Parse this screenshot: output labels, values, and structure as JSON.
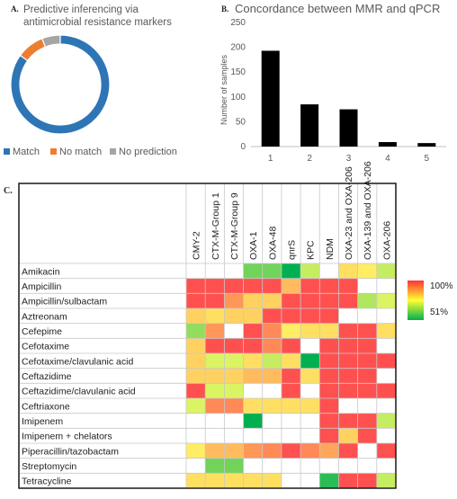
{
  "panel_a": {
    "letter": "A.",
    "title_line1": "Predictive inferencing via",
    "title_line2": "antimicrobial resistance markers",
    "legend": [
      {
        "label": "Match",
        "color": "#2e75b6"
      },
      {
        "label": "No match",
        "color": "#ed7d31"
      },
      {
        "label": "No prediction",
        "color": "#a5a5a5"
      }
    ]
  },
  "panel_b": {
    "letter": "B.",
    "title": "Concordance between MMR and qPCR",
    "ylabel": "Number of samples"
  },
  "panel_c": {
    "letter": "C.",
    "scale_high": "100%",
    "scale_low": "51%"
  },
  "chart_data": [
    {
      "type": "pie",
      "variant": "donut",
      "title": "Predictive inferencing via antimicrobial resistance markers",
      "labels": [
        "Match",
        "No match",
        "No prediction"
      ],
      "values": [
        85,
        9,
        6
      ],
      "colors": [
        "#2e75b6",
        "#ed7d31",
        "#a5a5a5"
      ],
      "legend_position": "bottom"
    },
    {
      "type": "bar",
      "title": "Concordance between MMR and qPCR",
      "categories": [
        "1",
        "2",
        "3",
        "4",
        "5"
      ],
      "values": [
        193,
        85,
        75,
        9,
        7
      ],
      "ylabel": "Number of samples",
      "ylim": [
        0,
        250
      ],
      "yticks": [
        0,
        50,
        100,
        150,
        200,
        250
      ],
      "color": "#000000"
    },
    {
      "type": "heatmap",
      "columns": [
        "CMY-2",
        "CTX-M-Group 1",
        "CTX-M-Group 9",
        "OXA-1",
        "OXA-48",
        "qnrS",
        "KPC",
        "NDM",
        "OXA-23 and OXA-206",
        "OXA-139 and OXA-206",
        "OXA-206"
      ],
      "rows": [
        "Amikacin",
        "Ampicillin",
        "Ampicillin/sulbactam",
        "Aztreonam",
        "Cefepime",
        "Cefotaxime",
        "Cefotaxime/clavulanic acid",
        "Ceftazidime",
        "Ceftazidime/clavulanic acid",
        "Ceftriaxone",
        "Imipenem",
        "Imipenem + chelators",
        "Piperacillin/tazobactam",
        "Streptomycin",
        "Tetracycline"
      ],
      "value_range": [
        51,
        100
      ],
      "colorscale": [
        "#00b050",
        "#ffff66",
        "#ff5050"
      ],
      "values": [
        [
          null,
          null,
          null,
          62,
          62,
          51,
          70,
          null,
          80,
          78,
          70
        ],
        [
          100,
          100,
          100,
          100,
          100,
          85,
          100,
          100,
          100,
          null,
          null
        ],
        [
          100,
          100,
          90,
          82,
          82,
          100,
          100,
          100,
          100,
          68,
          72
        ],
        [
          82,
          80,
          82,
          82,
          100,
          100,
          100,
          100,
          null,
          null,
          null
        ],
        [
          65,
          90,
          null,
          100,
          92,
          78,
          80,
          80,
          100,
          100,
          80
        ],
        [
          82,
          100,
          100,
          100,
          92,
          100,
          null,
          100,
          100,
          100,
          null
        ],
        [
          82,
          72,
          72,
          80,
          70,
          80,
          51,
          100,
          100,
          100,
          100
        ],
        [
          82,
          82,
          82,
          85,
          85,
          100,
          80,
          100,
          100,
          100,
          null
        ],
        [
          100,
          72,
          72,
          null,
          null,
          100,
          null,
          100,
          100,
          100,
          100
        ],
        [
          72,
          92,
          92,
          80,
          80,
          80,
          80,
          100,
          null,
          null,
          null
        ],
        [
          null,
          null,
          null,
          51,
          null,
          null,
          null,
          100,
          100,
          100,
          70
        ],
        [
          null,
          null,
          null,
          null,
          null,
          null,
          null,
          100,
          82,
          100,
          null
        ],
        [
          78,
          85,
          85,
          90,
          92,
          100,
          92,
          88,
          100,
          null,
          100
        ],
        [
          null,
          62,
          62,
          null,
          null,
          null,
          null,
          null,
          null,
          null,
          null
        ],
        [
          80,
          80,
          80,
          80,
          80,
          null,
          null,
          55,
          100,
          100,
          70
        ]
      ]
    }
  ]
}
